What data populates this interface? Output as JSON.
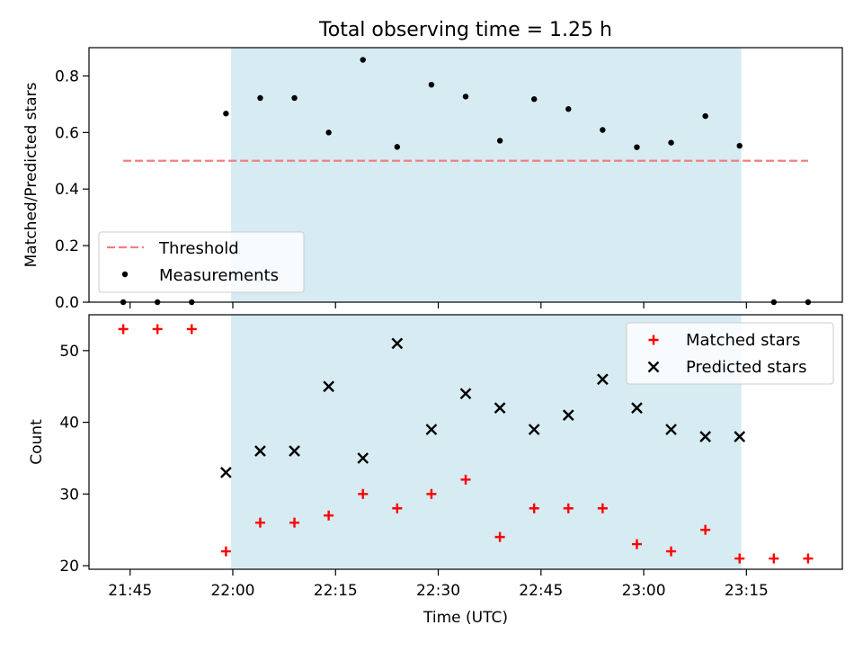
{
  "chart_data": [
    {
      "type": "scatter",
      "title": "Total observing time = 1.25 h",
      "xlabel": "",
      "ylabel": "Matched/Predicted stars",
      "ylim": [
        0,
        0.9
      ],
      "yticks": [
        0.0,
        0.2,
        0.4,
        0.6,
        0.8
      ],
      "ytick_labels": [
        "0.0",
        "0.2",
        "0.4",
        "0.6",
        "0.8"
      ],
      "xlim": [
        "21:39",
        "23:29"
      ],
      "highlight_span": [
        "21:59:45",
        "23:14:15"
      ],
      "legend_position": "lower-left",
      "legend": [
        "Threshold",
        "Measurements"
      ],
      "series": [
        {
          "name": "Threshold",
          "style": "dashed-line",
          "color": "#f08080",
          "x": [
            "21:44",
            "23:24"
          ],
          "y": [
            0.5,
            0.5
          ]
        },
        {
          "name": "Measurements",
          "style": "dots",
          "color": "#000000",
          "x": [
            "21:44",
            "21:49",
            "21:54",
            "21:59",
            "22:04",
            "22:09",
            "22:14",
            "22:19",
            "22:24",
            "22:29",
            "22:34",
            "22:39",
            "22:44",
            "22:49",
            "22:54",
            "22:59",
            "23:04",
            "23:09",
            "23:14",
            "23:19",
            "23:24"
          ],
          "y": [
            0.0,
            0.0,
            0.0,
            0.667,
            0.722,
            0.722,
            0.6,
            0.857,
            0.549,
            0.769,
            0.727,
            0.571,
            0.718,
            0.683,
            0.609,
            0.548,
            0.564,
            0.658,
            0.553,
            0.0,
            0.0
          ]
        }
      ]
    },
    {
      "type": "scatter",
      "title": "",
      "xlabel": "Time (UTC)",
      "ylabel": "Count",
      "ylim": [
        19.5,
        55
      ],
      "yticks": [
        20,
        30,
        40,
        50
      ],
      "ytick_labels": [
        "20",
        "30",
        "40",
        "50"
      ],
      "xticks": [
        "21:45",
        "22:00",
        "22:15",
        "22:30",
        "22:45",
        "23:00",
        "23:15"
      ],
      "xlim": [
        "21:39",
        "23:29"
      ],
      "highlight_span": [
        "21:59:45",
        "23:14:15"
      ],
      "legend_position": "top-right",
      "legend": [
        "Matched stars",
        "Predicted stars"
      ],
      "series": [
        {
          "name": "Matched stars",
          "marker": "plus",
          "color": "#ff0000",
          "x": [
            "21:44",
            "21:49",
            "21:54",
            "21:59",
            "22:04",
            "22:09",
            "22:14",
            "22:19",
            "22:24",
            "22:29",
            "22:34",
            "22:39",
            "22:44",
            "22:49",
            "22:54",
            "22:59",
            "23:04",
            "23:09",
            "23:14",
            "23:19",
            "23:24"
          ],
          "y": [
            53,
            53,
            53,
            22,
            26,
            26,
            27,
            30,
            28,
            30,
            32,
            24,
            28,
            28,
            28,
            23,
            22,
            25,
            21,
            21,
            21
          ]
        },
        {
          "name": "Predicted stars",
          "marker": "x",
          "color": "#000000",
          "x": [
            "21:59",
            "22:04",
            "22:09",
            "22:14",
            "22:19",
            "22:24",
            "22:29",
            "22:34",
            "22:39",
            "22:44",
            "22:49",
            "22:54",
            "22:59",
            "23:04",
            "23:09",
            "23:14"
          ],
          "y": [
            33,
            36,
            36,
            45,
            35,
            51,
            39,
            44,
            42,
            39,
            41,
            46,
            42,
            39,
            38,
            38
          ]
        }
      ]
    }
  ]
}
